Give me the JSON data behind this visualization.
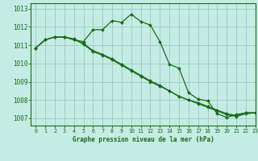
{
  "title": "Graphe pression niveau de la mer (hPa)",
  "background_color": "#c5ece4",
  "grid_color": "#a0cfc7",
  "line_color": "#1a6b1a",
  "xlim": [
    -0.5,
    23
  ],
  "ylim": [
    1006.6,
    1013.3
  ],
  "yticks": [
    1007,
    1008,
    1009,
    1010,
    1011,
    1012,
    1013
  ],
  "xticks": [
    0,
    1,
    2,
    3,
    4,
    5,
    6,
    7,
    8,
    9,
    10,
    11,
    12,
    13,
    14,
    15,
    16,
    17,
    18,
    19,
    20,
    21,
    22,
    23
  ],
  "series": [
    [
      1010.85,
      1011.3,
      1011.45,
      1011.45,
      1011.3,
      1011.2,
      1011.85,
      1011.85,
      1012.35,
      1012.25,
      1012.7,
      1012.3,
      1012.1,
      1011.2,
      1009.95,
      1009.75,
      1008.4,
      1008.05,
      1007.95,
      1007.25,
      1007.05,
      1007.2,
      1007.3,
      1007.3
    ],
    [
      1010.85,
      1011.3,
      1011.45,
      1011.45,
      1011.35,
      1011.05,
      1010.65,
      1010.45,
      1010.2,
      1009.9,
      1009.6,
      1009.3,
      1009.0,
      1008.75,
      1008.5,
      1008.2,
      1008.0,
      1007.8,
      1007.6,
      1007.4,
      1007.2,
      1007.1,
      1007.25,
      1007.3
    ],
    [
      1010.85,
      1011.3,
      1011.45,
      1011.45,
      1011.3,
      1011.1,
      1010.7,
      1010.5,
      1010.25,
      1009.95,
      1009.65,
      1009.35,
      1009.05,
      1008.8,
      1008.5,
      1008.2,
      1008.0,
      1007.85,
      1007.65,
      1007.45,
      1007.25,
      1007.15,
      1007.3,
      1007.3
    ]
  ]
}
